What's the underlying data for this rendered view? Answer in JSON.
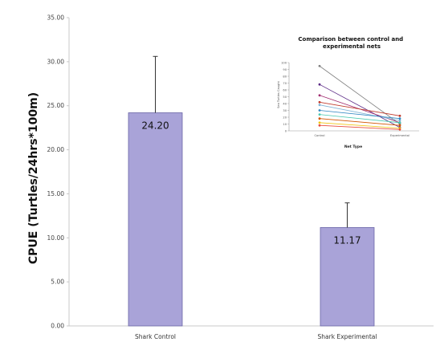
{
  "chart_data": [
    {
      "type": "bar",
      "categories": [
        "Shark Control",
        "Shark Experimental"
      ],
      "values": [
        24.2,
        11.17
      ],
      "error_plus": [
        6.4,
        2.8
      ],
      "value_labels": [
        "24.20",
        "11.17"
      ],
      "ylabel": "CPUE (Turtles/24hrs*100m)",
      "ylim": [
        0,
        35
      ],
      "yticks": [
        "0.00",
        "5.00",
        "10.00",
        "15.00",
        "20.00",
        "25.00",
        "30.00",
        "35.00"
      ],
      "bar_color": "#a9a3d8",
      "bar_edge_color": "#6b66a8",
      "grid": false
    },
    {
      "type": "line",
      "title": "Comparison between control and experimental nets",
      "xlabel": "Net Type",
      "ylabel": "Sea Turtles Caught",
      "categories": [
        "Control",
        "Experimental"
      ],
      "ylim": [
        0,
        100
      ],
      "series": [
        {
          "values": [
            95,
            10
          ],
          "color": "#808080"
        },
        {
          "values": [
            68,
            5
          ],
          "color": "#5b2a86"
        },
        {
          "values": [
            52,
            12
          ],
          "color": "#a02a6e"
        },
        {
          "values": [
            42,
            22
          ],
          "color": "#c0392b"
        },
        {
          "values": [
            38,
            15
          ],
          "color": "#7fb3d5"
        },
        {
          "values": [
            30,
            18
          ],
          "color": "#2e86c1"
        },
        {
          "values": [
            24,
            12
          ],
          "color": "#48c9b0"
        },
        {
          "values": [
            18,
            8
          ],
          "color": "#d35400"
        },
        {
          "values": [
            12,
            4
          ],
          "color": "#f1c40f"
        },
        {
          "values": [
            8,
            2
          ],
          "color": "#e74c3c"
        }
      ]
    }
  ]
}
